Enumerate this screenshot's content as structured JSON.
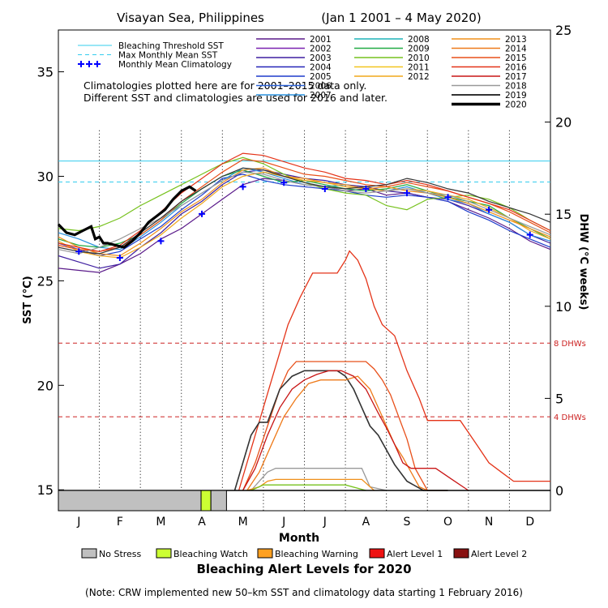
{
  "chart_data": {
    "type": "line",
    "title": "Visayan Sea, Philippines",
    "date_range": "(Jan 1 2001 – 4 May 2020)",
    "xlabel": "Month",
    "ylabel_left": "SST (°C)",
    "ylabel_right": "DHW (°C weeks)",
    "month_labels": [
      "J",
      "F",
      "M",
      "A",
      "M",
      "J",
      "J",
      "A",
      "S",
      "O",
      "N",
      "D"
    ],
    "sst_ticks": [
      15,
      20,
      25,
      30,
      35
    ],
    "dhw_ticks": [
      0,
      5,
      10,
      15,
      20,
      25
    ],
    "sst_range": [
      14.0,
      37.0
    ],
    "dhw_range": [
      -1.1,
      25.0
    ],
    "bleaching_threshold_sst": 30.73,
    "max_monthly_mean_sst": 29.73,
    "dhw_reference_lines": [
      {
        "value": 8,
        "label": "8 DHWs"
      },
      {
        "value": 4,
        "label": "4 DHWs"
      }
    ],
    "legend_lines": [
      {
        "label": "Bleaching Threshold SST",
        "color": "#33ccee"
      },
      {
        "label": "Max Monthly Mean SST",
        "color": "#33ccee"
      },
      {
        "label": "Monthly Mean Climatology",
        "color": "#0000ff"
      }
    ],
    "note_lines": [
      "Climatologies plotted here are for 2001–2015 data only.",
      "Different SST and climatologies are used for 2016 and later."
    ],
    "years": [
      {
        "year": "2001",
        "color": "#5a1a8a"
      },
      {
        "year": "2002",
        "color": "#7a22b0"
      },
      {
        "year": "2003",
        "color": "#3f1fa0"
      },
      {
        "year": "2004",
        "color": "#2626b8"
      },
      {
        "year": "2005",
        "color": "#1e3ccc"
      },
      {
        "year": "2006",
        "color": "#2a62d8"
      },
      {
        "year": "2007",
        "color": "#2a90dd"
      },
      {
        "year": "2008",
        "color": "#1fb4b8"
      },
      {
        "year": "2009",
        "color": "#22aa44"
      },
      {
        "year": "2010",
        "color": "#77c21e"
      },
      {
        "year": "2011",
        "color": "#f2c51f"
      },
      {
        "year": "2012",
        "color": "#f0a81c"
      },
      {
        "year": "2013",
        "color": "#f0901a"
      },
      {
        "year": "2014",
        "color": "#ee7a1a"
      },
      {
        "year": "2015",
        "color": "#e8501a"
      },
      {
        "year": "2016",
        "color": "#e43318"
      },
      {
        "year": "2017",
        "color": "#c81616"
      },
      {
        "year": "2018",
        "color": "#999999"
      },
      {
        "year": "2019",
        "color": "#333333"
      },
      {
        "year": "2020",
        "color": "#000000"
      }
    ],
    "climatology_sst": {
      "x": [
        0.5,
        1.5,
        2.5,
        3.5,
        4.5,
        5.5,
        6.5,
        7.5,
        8.5,
        9.5,
        10.5,
        11.5
      ],
      "y": [
        26.4,
        26.1,
        26.9,
        28.2,
        29.5,
        29.7,
        29.4,
        29.4,
        29.2,
        29.0,
        28.4,
        27.2
      ]
    },
    "sst_2020": {
      "x": [
        0,
        0.2,
        0.4,
        0.6,
        0.8,
        0.9,
        1.0,
        1.1,
        1.2,
        1.4,
        1.6,
        1.8,
        2.0,
        2.2,
        2.4,
        2.6,
        2.8,
        3.0,
        3.2,
        3.35
      ],
      "y": [
        27.7,
        27.3,
        27.2,
        27.4,
        27.6,
        27.0,
        27.1,
        26.8,
        26.8,
        26.7,
        26.6,
        26.9,
        27.3,
        27.8,
        28.1,
        28.4,
        28.9,
        29.3,
        29.5,
        29.3
      ]
    },
    "sst_other_years": [
      {
        "year": "2001",
        "x": [
          0,
          0.5,
          1,
          1.5,
          2,
          2.5,
          3,
          3.5,
          4,
          4.5,
          5,
          5.5,
          6,
          6.5,
          7,
          7.5,
          8,
          8.5,
          9,
          9.5,
          10,
          10.5,
          11,
          11.5,
          12
        ],
        "y": [
          25.6,
          25.5,
          25.4,
          25.8,
          26.3,
          27.0,
          27.5,
          28.2,
          28.9,
          29.6,
          29.9,
          29.8,
          29.6,
          29.5,
          29.3,
          29.4,
          29.1,
          29.2,
          29.0,
          28.8,
          28.4,
          28.0,
          27.5,
          26.9,
          26.5
        ]
      },
      {
        "year": "2003",
        "x": [
          0,
          0.5,
          1,
          1.5,
          2,
          2.5,
          3,
          3.5,
          4,
          4.5,
          5,
          5.5,
          6,
          6.5,
          7,
          7.5,
          8,
          8.5,
          9,
          9.5,
          10,
          10.5,
          11,
          11.5,
          12
        ],
        "y": [
          26.2,
          25.9,
          25.6,
          25.8,
          26.6,
          27.3,
          28.2,
          28.8,
          29.6,
          30.2,
          30.3,
          30.1,
          29.9,
          29.8,
          29.6,
          29.5,
          29.3,
          29.2,
          29.0,
          28.9,
          28.6,
          28.2,
          27.8,
          27.2,
          26.8
        ]
      },
      {
        "year": "2005",
        "x": [
          0,
          0.5,
          1,
          1.5,
          2,
          2.5,
          3,
          3.5,
          4,
          4.5,
          5,
          5.5,
          6,
          6.5,
          7,
          7.5,
          8,
          8.5,
          9,
          9.5,
          10,
          10.5,
          11,
          11.5,
          12
        ],
        "y": [
          26.8,
          26.5,
          26.2,
          26.4,
          27.0,
          27.6,
          28.4,
          29.1,
          29.9,
          30.1,
          29.8,
          29.6,
          29.5,
          29.4,
          29.3,
          29.1,
          29.0,
          29.1,
          29.0,
          28.8,
          28.3,
          27.9,
          27.4,
          27.0,
          26.6
        ]
      },
      {
        "year": "2007",
        "x": [
          0,
          0.5,
          1,
          1.5,
          2,
          2.5,
          3,
          3.5,
          4,
          4.5,
          5,
          5.5,
          6,
          6.5,
          7,
          7.5,
          8,
          8.5,
          9,
          9.5,
          10,
          10.5,
          11,
          11.5,
          12
        ],
        "y": [
          27.3,
          27.0,
          26.6,
          26.5,
          27.1,
          27.8,
          28.6,
          29.2,
          29.8,
          30.4,
          30.2,
          29.9,
          29.6,
          29.5,
          29.6,
          29.4,
          29.3,
          29.5,
          29.2,
          28.9,
          28.7,
          28.2,
          27.8,
          27.2,
          26.9
        ]
      },
      {
        "year": "2009",
        "x": [
          0,
          0.5,
          1,
          1.5,
          2,
          2.5,
          3,
          3.5,
          4,
          4.5,
          5,
          5.5,
          6,
          6.5,
          7,
          7.5,
          8,
          8.5,
          9,
          9.5,
          10,
          10.5,
          11,
          11.5,
          12
        ],
        "y": [
          27.0,
          26.7,
          26.6,
          26.8,
          27.2,
          27.9,
          28.7,
          29.4,
          30.0,
          30.3,
          30.0,
          29.7,
          29.8,
          29.6,
          29.4,
          29.3,
          29.4,
          29.6,
          29.3,
          29.0,
          28.8,
          28.6,
          28.0,
          27.5,
          27.0
        ]
      },
      {
        "year": "2010",
        "x": [
          0,
          0.5,
          1,
          1.5,
          2,
          2.5,
          3,
          3.5,
          4,
          4.5,
          5,
          5.5,
          6,
          6.5,
          7,
          7.5,
          8,
          8.5,
          9,
          9.5,
          10,
          10.5,
          11,
          11.5,
          12
        ],
        "y": [
          27.5,
          27.4,
          27.6,
          28.0,
          28.6,
          29.1,
          29.6,
          30.1,
          30.6,
          30.9,
          30.6,
          30.1,
          29.7,
          29.4,
          29.2,
          29.1,
          28.6,
          28.4,
          28.9,
          29.0,
          29.1,
          28.9,
          28.5,
          27.9,
          27.4
        ]
      },
      {
        "year": "2012",
        "x": [
          0,
          0.5,
          1,
          1.5,
          2,
          2.5,
          3,
          3.5,
          4,
          4.5,
          5,
          5.5,
          6,
          6.5,
          7,
          7.5,
          8,
          8.5,
          9,
          9.5,
          10,
          10.5,
          11,
          11.5,
          12
        ],
        "y": [
          26.9,
          26.4,
          26.2,
          26.1,
          26.6,
          27.2,
          28.0,
          28.7,
          29.5,
          30.0,
          30.2,
          30.0,
          29.8,
          29.7,
          29.5,
          29.4,
          29.3,
          29.4,
          29.3,
          29.1,
          28.9,
          28.5,
          28.0,
          27.4,
          27.0
        ]
      },
      {
        "year": "2013",
        "x": [
          0,
          0.5,
          1,
          1.5,
          2,
          2.5,
          3,
          3.5,
          4,
          4.5,
          5,
          5.5,
          6,
          6.5,
          7,
          7.5,
          8,
          8.5,
          9,
          9.5,
          10,
          10.5,
          11,
          11.5,
          12
        ],
        "y": [
          27.1,
          26.6,
          26.3,
          26.2,
          26.8,
          27.5,
          28.3,
          28.9,
          29.7,
          30.3,
          30.4,
          30.0,
          29.9,
          29.7,
          29.6,
          29.4,
          29.5,
          29.3,
          29.2,
          29.0,
          28.7,
          28.3,
          27.9,
          27.5,
          27.1
        ]
      },
      {
        "year": "2015",
        "x": [
          0,
          0.5,
          1,
          1.5,
          2,
          2.5,
          3,
          3.5,
          4,
          4.5,
          5,
          5.5,
          6,
          6.5,
          7,
          7.5,
          8,
          8.5,
          9,
          9.5,
          10,
          10.5,
          11,
          11.5,
          12
        ],
        "y": [
          26.7,
          26.5,
          26.4,
          26.6,
          27.2,
          27.9,
          28.8,
          29.5,
          30.2,
          30.8,
          30.7,
          30.4,
          30.1,
          30.0,
          29.8,
          29.6,
          29.5,
          29.7,
          29.5,
          29.3,
          29.0,
          28.7,
          28.3,
          27.8,
          27.3
        ]
      },
      {
        "year": "2016",
        "x": [
          0,
          0.5,
          1,
          1.5,
          2,
          2.5,
          3,
          3.5,
          4,
          4.5,
          5,
          5.5,
          6,
          6.5,
          7,
          7.5,
          8,
          8.5,
          9,
          9.5,
          10,
          10.5,
          11,
          11.5,
          12
        ],
        "y": [
          26.8,
          26.6,
          26.4,
          26.7,
          27.4,
          28.3,
          29.2,
          29.9,
          30.6,
          31.1,
          31.0,
          30.7,
          30.4,
          30.2,
          29.9,
          29.8,
          29.6,
          29.8,
          29.6,
          29.3,
          29.0,
          28.7,
          28.4,
          27.9,
          27.4
        ]
      },
      {
        "year": "2018",
        "x": [
          0,
          0.5,
          1,
          1.5,
          2,
          2.5,
          3,
          3.5,
          4,
          4.5,
          5,
          5.5,
          6,
          6.5,
          7,
          7.5,
          8,
          8.5,
          9,
          9.5,
          10,
          10.5,
          11,
          11.5,
          12
        ],
        "y": [
          26.5,
          26.3,
          26.6,
          27.0,
          27.5,
          28.0,
          28.6,
          29.2,
          29.8,
          30.2,
          30.1,
          29.8,
          29.6,
          29.5,
          29.3,
          29.2,
          29.3,
          29.4,
          29.2,
          29.1,
          28.8,
          28.4,
          28.0,
          27.6,
          27.2
        ]
      },
      {
        "year": "2019",
        "x": [
          0,
          0.5,
          1,
          1.5,
          2,
          2.5,
          3,
          3.5,
          4,
          4.5,
          5,
          5.5,
          6,
          6.5,
          7,
          7.5,
          8,
          8.5,
          9,
          9.5,
          10,
          10.5,
          11,
          11.5,
          12
        ],
        "y": [
          26.6,
          26.4,
          26.3,
          26.6,
          27.3,
          28.0,
          28.8,
          29.4,
          30.0,
          30.4,
          30.3,
          30.0,
          29.7,
          29.5,
          29.4,
          29.5,
          29.6,
          29.9,
          29.7,
          29.4,
          29.2,
          28.8,
          28.5,
          28.2,
          27.8
        ]
      }
    ],
    "dhw_series": [
      {
        "year": "2016",
        "x": [
          4.4,
          4.6,
          4.8,
          5.0,
          5.2,
          5.4,
          5.6,
          5.9,
          6.2,
          6.5,
          6.8,
          7.0,
          7.1,
          7.3,
          7.5,
          7.7,
          7.9,
          8.2,
          8.5,
          8.8,
          9.0,
          9.4,
          9.8,
          10.2,
          10.5,
          10.8,
          11.1,
          11.5,
          12
        ],
        "y": [
          0,
          1.5,
          3,
          4.5,
          6,
          7.5,
          9,
          10.5,
          11.8,
          11.8,
          11.8,
          12.5,
          13,
          12.5,
          11.5,
          10,
          9,
          8.4,
          6.5,
          5,
          3.8,
          3.8,
          3.8,
          2.5,
          1.5,
          1.0,
          0.5,
          0.5,
          0.5
        ]
      },
      {
        "year": "2015",
        "x": [
          4.5,
          4.8,
          5.1,
          5.4,
          5.6,
          5.8,
          6.0,
          6.3,
          6.6,
          6.9,
          7.2,
          7.5,
          7.7,
          7.9,
          8.1,
          8.3,
          8.5,
          8.7,
          9.0,
          9.5
        ],
        "y": [
          0,
          1.5,
          3.5,
          5.5,
          6.5,
          7.0,
          7.0,
          7.0,
          7.0,
          7.0,
          7.0,
          7.0,
          6.6,
          6.0,
          5.2,
          4.0,
          2.8,
          1.2,
          0,
          0
        ]
      },
      {
        "year": "2019",
        "x": [
          4.3,
          4.5,
          4.7,
          4.9,
          5.1,
          5.4,
          5.7,
          6.0,
          6.4,
          6.8,
          7.0,
          7.2,
          7.4,
          7.6,
          7.8,
          8.0,
          8.2,
          8.5,
          8.9,
          9.5
        ],
        "y": [
          0,
          1.5,
          3,
          3.7,
          3.7,
          5.5,
          6.2,
          6.5,
          6.5,
          6.5,
          6.2,
          5.5,
          4.5,
          3.5,
          3.0,
          2.2,
          1.4,
          0.5,
          0,
          0
        ]
      },
      {
        "year": "2014",
        "x": [
          4.6,
          4.9,
          5.2,
          5.5,
          5.8,
          6.1,
          6.4,
          6.7,
          7.0,
          7.3,
          7.6,
          7.8,
          8.0,
          8.2,
          8.4,
          8.6,
          8.8,
          9.0
        ],
        "y": [
          0,
          1,
          2.5,
          4,
          5,
          5.8,
          6,
          6,
          6,
          6.2,
          5.5,
          4.5,
          3.5,
          2.5,
          1.8,
          1.0,
          0.2,
          0
        ]
      },
      {
        "year": "2017",
        "x": [
          4.5,
          4.8,
          5.1,
          5.4,
          5.7,
          6.0,
          6.3,
          6.6,
          6.9,
          7.2,
          7.5,
          7.8,
          8.0,
          8.2,
          8.4,
          8.6,
          8.8,
          9.2,
          9.6,
          10.0
        ],
        "y": [
          0,
          1.2,
          3,
          4.5,
          5.5,
          6.0,
          6.3,
          6.5,
          6.5,
          6.2,
          5.5,
          4.2,
          3.4,
          2.5,
          1.5,
          1.2,
          1.2,
          1.2,
          0.6,
          0
        ]
      },
      {
        "year": "2018",
        "x": [
          4.7,
          4.9,
          5.1,
          5.3,
          6.0,
          7.0,
          7.4,
          7.6,
          8.0
        ],
        "y": [
          0,
          0.5,
          1.0,
          1.2,
          1.2,
          1.2,
          1.2,
          0.2,
          0
        ]
      },
      {
        "year": "2013",
        "x": [
          4.6,
          4.9,
          5.1,
          5.3,
          6.0,
          7.0,
          7.4,
          7.7
        ],
        "y": [
          0,
          0.2,
          0.5,
          0.6,
          0.6,
          0.6,
          0.6,
          0
        ]
      },
      {
        "year": "2010",
        "x": [
          4.7,
          5.0,
          5.5,
          7.0,
          7.5
        ],
        "y": [
          0,
          0.3,
          0.3,
          0.3,
          0
        ]
      }
    ],
    "alert_bar": {
      "title": "Bleaching Alert Levels for 2020",
      "segments": [
        {
          "level": "No Stress",
          "start": 0,
          "end": 3.48
        },
        {
          "level": "Bleaching Watch",
          "start": 3.48,
          "end": 3.72
        },
        {
          "level": "No Stress",
          "start": 3.72,
          "end": 4.1
        }
      ],
      "legend": [
        {
          "label": "No Stress",
          "color": "#c0c0c0"
        },
        {
          "label": "Bleaching Watch",
          "color": "#ccff33"
        },
        {
          "label": "Bleaching Warning",
          "color": "#ffa020"
        },
        {
          "label": "Alert Level 1",
          "color": "#ee1111"
        },
        {
          "label": "Alert Level 2",
          "color": "#881111"
        }
      ]
    },
    "footnote": "(Note: CRW implemented new 50–km SST and climatology data starting 1 February 2016)"
  }
}
